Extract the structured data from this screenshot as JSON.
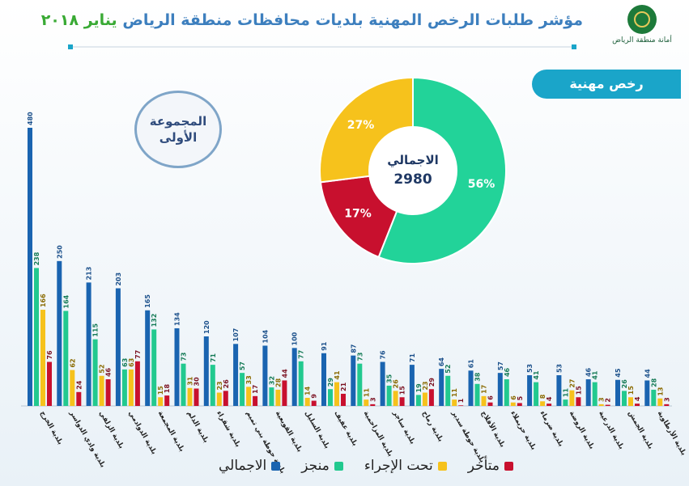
{
  "header": {
    "title_blue": "مؤشر طلبات الرخص المهنية بلديات محافظات منطقة الرياض",
    "title_green": "يناير ٢٠١٨"
  },
  "logo": {
    "text": "أمانة منطقة الرياض",
    "mark_text": "الرياض"
  },
  "badge": {
    "label": "رخص مهنية"
  },
  "group": {
    "line1": "المجموعة",
    "line2": "الأولى"
  },
  "colors": {
    "total": "#1a64b0",
    "completed": "#22c98f",
    "in_progress": "#f6c21c",
    "late": "#c8102e",
    "accent": "#1aa5c9"
  },
  "chart_data": [
    {
      "type": "pie",
      "center_label": "الاجمالي",
      "center_value": "2980",
      "slices": [
        {
          "name": "منجز",
          "value": 56,
          "label": "56%",
          "color": "#22d399"
        },
        {
          "name": "متأخر",
          "value": 17,
          "label": "17%",
          "color": "#c8102e"
        },
        {
          "name": "تحت الإجراء",
          "value": 27,
          "label": "27%",
          "color": "#f6c21c"
        }
      ]
    },
    {
      "type": "bar",
      "categories": [
        "بلدية الخرج",
        "بلدية وادي الدواسر",
        "بلدية الزلفي",
        "بلدية الدوادمي",
        "بلدية المجمعة",
        "بلدية الدلم",
        "بلدية شقراء",
        "بلدية حوطة بني تميم",
        "بلدية القويعية",
        "بلدية السليل",
        "بلدية عفيف",
        "بلدية المزاحمية",
        "بلدية ساجر",
        "بلدية رماح",
        "بلدية حوطة سدير",
        "بلدية الأفلاج",
        "بلدية حريملاء",
        "بلدية ضرماء",
        "بلدية الروضة",
        "بلدية الدرعية",
        "بلدية الجمش",
        "بلدية الأرطاوية"
      ],
      "series": [
        {
          "name": "الاجمالي",
          "color": "#1a64b0",
          "values": [
            480,
            250,
            213,
            203,
            165,
            134,
            120,
            107,
            104,
            100,
            91,
            87,
            76,
            71,
            64,
            61,
            57,
            53,
            53,
            46,
            45,
            44
          ]
        },
        {
          "name": "منجز",
          "color": "#22c98f",
          "values": [
            238,
            164,
            115,
            63,
            132,
            73,
            71,
            57,
            32,
            77,
            29,
            73,
            35,
            19,
            52,
            38,
            46,
            41,
            11,
            41,
            26,
            28
          ]
        },
        {
          "name": "تحت الإجراء",
          "color": "#f6c21c",
          "values": [
            166,
            62,
            52,
            63,
            15,
            31,
            23,
            33,
            28,
            14,
            41,
            11,
            26,
            23,
            11,
            17,
            6,
            8,
            27,
            3,
            15,
            13
          ]
        },
        {
          "name": "متأخر",
          "color": "#c8102e",
          "values": [
            76,
            24,
            46,
            77,
            18,
            30,
            26,
            17,
            44,
            9,
            21,
            3,
            15,
            29,
            1,
            6,
            5,
            4,
            15,
            2,
            4,
            3
          ]
        }
      ],
      "ylim": [
        0,
        480
      ],
      "legend": "bottom"
    }
  ]
}
